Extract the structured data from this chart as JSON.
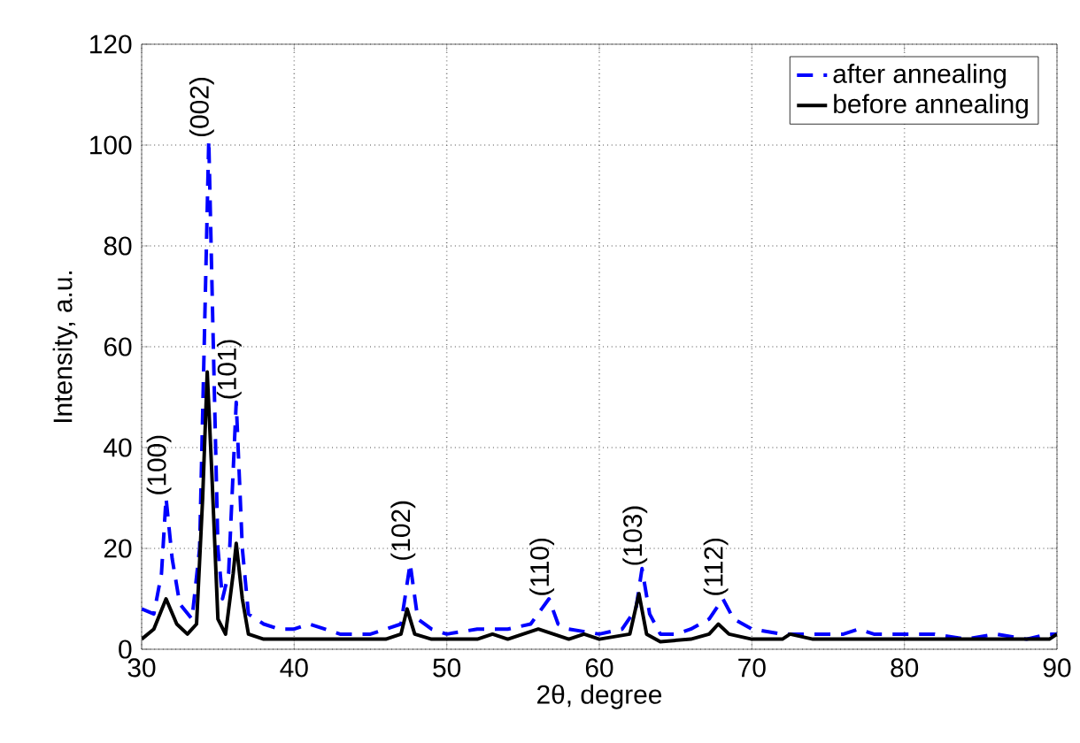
{
  "chart_data": {
    "type": "line",
    "xlabel": "2θ, degree",
    "ylabel": "Intensity, a.u.",
    "xlim": [
      30,
      90
    ],
    "xticks": [
      30,
      40,
      50,
      60,
      70,
      80,
      90
    ],
    "ylim": [
      0,
      120
    ],
    "yticks": [
      0,
      20,
      40,
      60,
      80,
      100,
      120
    ],
    "grid": true,
    "legend": "top right",
    "series": [
      {
        "name": "after annealing",
        "color": "#0000ff",
        "line_style": "dashed",
        "x": [
          30,
          30.8,
          31.3,
          31.6,
          32,
          32.5,
          33.3,
          33.8,
          34.1,
          34.4,
          34.7,
          35.0,
          35.3,
          35.7,
          36.2,
          36.6,
          37,
          38,
          39,
          40,
          41,
          42,
          43,
          44,
          45,
          46,
          47,
          47.6,
          48.1,
          49,
          50,
          52,
          54,
          55.5,
          56.7,
          57.3,
          58,
          60,
          61.5,
          62.4,
          62.8,
          63.3,
          64,
          65,
          66,
          67.2,
          68.1,
          68.8,
          70,
          72,
          74,
          76,
          77,
          78,
          80,
          82,
          84,
          86,
          88,
          89.5,
          90
        ],
        "values": [
          8,
          7,
          15,
          30,
          18,
          9,
          6,
          20,
          60,
          101,
          60,
          20,
          10,
          15,
          49,
          20,
          7,
          5,
          4,
          4,
          5,
          4,
          3,
          3,
          3,
          4,
          5,
          17,
          6,
          4,
          3,
          4,
          4,
          5,
          10,
          5,
          4,
          3,
          4,
          8,
          16,
          7,
          3,
          3,
          4,
          6,
          10,
          6,
          4,
          3,
          3,
          3,
          4,
          3,
          3,
          3,
          2,
          3,
          2,
          3,
          3
        ]
      },
      {
        "name": "before annealing",
        "color": "#000000",
        "line_style": "solid",
        "x": [
          30,
          30.8,
          31.6,
          32.3,
          33,
          33.6,
          34.0,
          34.3,
          34.6,
          35.0,
          35.5,
          36.0,
          36.2,
          36.6,
          37.0,
          38,
          39,
          40,
          42,
          44,
          46,
          47,
          47.4,
          47.9,
          49,
          52,
          53,
          54,
          56,
          57,
          58,
          59,
          60,
          62,
          62.6,
          63.1,
          64,
          66,
          67.2,
          67.8,
          68.5,
          70,
          72,
          72.5,
          74,
          78,
          80,
          84,
          88,
          89.5,
          90
        ],
        "values": [
          2,
          4,
          10,
          5,
          3,
          5,
          30,
          55,
          35,
          6,
          3,
          15,
          21,
          10,
          3,
          2,
          2,
          2,
          2,
          2,
          2,
          3,
          8,
          3,
          2,
          2,
          3,
          2,
          4,
          3,
          2,
          3,
          2,
          3,
          11,
          3,
          1.5,
          2,
          3,
          5,
          3,
          2,
          2,
          3,
          2,
          2,
          2,
          2,
          2,
          2,
          3
        ]
      }
    ],
    "annotations": [
      {
        "text": "(100)",
        "x": 31.6,
        "y": 30
      },
      {
        "text": "(002)",
        "x": 34.4,
        "y": 101
      },
      {
        "text": "(101)",
        "x": 36.2,
        "y": 49
      },
      {
        "text": "(102)",
        "x": 47.6,
        "y": 17
      },
      {
        "text": "(110)",
        "x": 56.7,
        "y": 10
      },
      {
        "text": "(103)",
        "x": 62.8,
        "y": 16
      },
      {
        "text": "(112)",
        "x": 68.1,
        "y": 10
      }
    ]
  }
}
